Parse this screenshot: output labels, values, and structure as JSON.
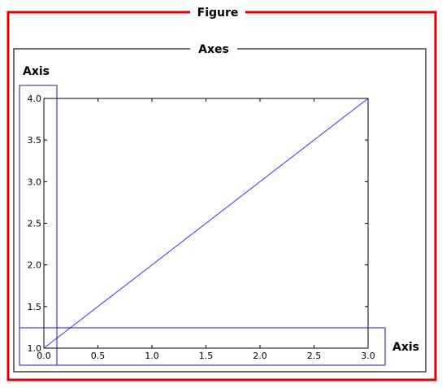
{
  "labels": {
    "figure": "Figure",
    "axes": "Axes",
    "axis_y": "Axis",
    "axis_x": "Axis"
  },
  "colors": {
    "figure_frame": "#e00000",
    "axes_frame": "#707070",
    "axis_highlight": "#1a1aa6",
    "line": "#3333ff",
    "plot_frame": "#000000"
  },
  "chart_data": {
    "type": "line",
    "x": [
      0.0,
      3.0
    ],
    "series": [
      {
        "values": [
          1.0,
          4.0
        ]
      }
    ],
    "xlim": [
      0.0,
      3.0
    ],
    "ylim": [
      1.0,
      4.0
    ],
    "xticks": [
      "0.0",
      "0.5",
      "1.0",
      "1.5",
      "2.0",
      "2.5",
      "3.0"
    ],
    "yticks": [
      "1.0",
      "1.5",
      "2.0",
      "2.5",
      "3.0",
      "3.5",
      "4.0"
    ]
  }
}
